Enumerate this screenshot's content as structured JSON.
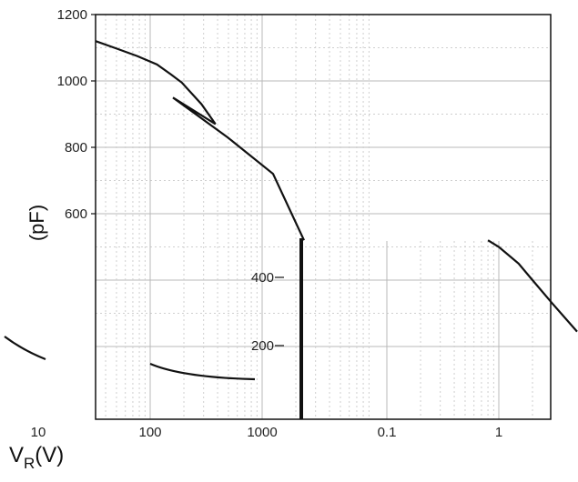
{
  "chart_data": [
    {
      "type": "line",
      "title": "",
      "xlabel": "V",
      "xlabel_sub": "R",
      "xlabel_unit": "(V)",
      "ylabel": "(pF)",
      "x_scale": "log",
      "y_scale": "linear",
      "xlim": [
        3,
        5000
      ],
      "ylim": [
        100,
        1200
      ],
      "x_tick_labels": [
        "10",
        "100",
        "1000"
      ],
      "x_tick_values": [
        10,
        100,
        1000
      ],
      "y_tick_labels": [
        "1200",
        "1000",
        "800",
        "600",
        "400",
        "200"
      ],
      "y_tick_values": [
        1200,
        1000,
        800,
        600,
        400,
        200
      ],
      "grid": true,
      "legend": "none",
      "series": [
        {
          "x": [
            3.4,
            5,
            8,
            12,
            16,
            20,
            30,
            40
          ],
          "y": [
            1120,
            1100,
            1075,
            1050,
            1020,
            995,
            930,
            870
          ]
        }
      ]
    },
    {
      "type": "line",
      "title": "",
      "xlabel": "",
      "ylabel": "",
      "x_scale": "log",
      "x_tick_labels": [
        "0.1",
        "1"
      ],
      "x_tick_values": [
        0.1,
        1
      ],
      "y_tick_labels": [
        "400",
        "200"
      ],
      "y_tick_values": [
        400,
        200
      ],
      "grid": true,
      "legend": "none",
      "series": [
        {
          "x": [
            0.8,
            1,
            1.5,
            2,
            3,
            5
          ],
          "y": [
            520,
            500,
            450,
            400,
            330,
            245
          ]
        }
      ]
    }
  ]
}
